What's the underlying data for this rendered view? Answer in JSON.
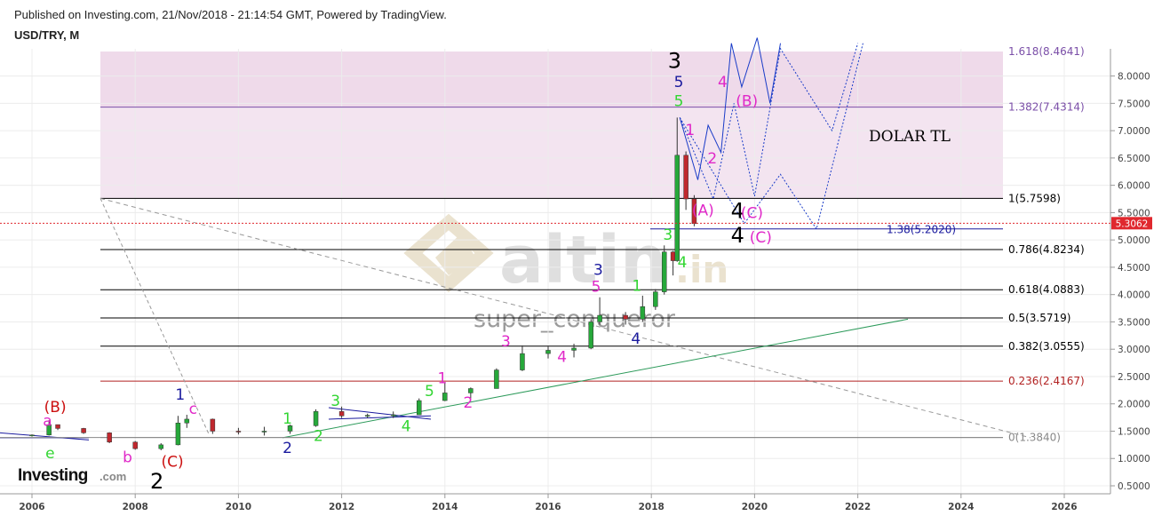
{
  "header": {
    "published": "Published on Investing.com, 21/Nov/2018 - 21:14:54 GMT, Powered by TradingView.",
    "symbol": "USD/TRY, M"
  },
  "watermark": {
    "brand": "altin",
    "suffix": ".in",
    "author": "super_conqueror"
  },
  "logo": {
    "main": "Investing",
    "suffix": ".com"
  },
  "annotation": {
    "text": "DOLAR TL"
  },
  "colors": {
    "up": "#26a83a",
    "down": "#c0282e",
    "fib_zone": "#f3e4f0",
    "wave_black": "#000000",
    "wave_blue": "#1a1a9e",
    "wave_green": "#33d633",
    "wave_magenta": "#e028c8",
    "wave_red": "#cc1111",
    "current_price": "#e0282e"
  },
  "chart_data": {
    "type": "candlestick",
    "timeframe": "monthly",
    "x_ticks": [
      "2006",
      "2008",
      "2010",
      "2012",
      "2014",
      "2016",
      "2018",
      "2020",
      "2022",
      "2024",
      "2026"
    ],
    "y_ticks": [
      "0.5000",
      "1.0000",
      "1.5000",
      "2.0000",
      "2.5000",
      "3.0000",
      "3.5000",
      "4.0000",
      "4.5000",
      "5.0000",
      "5.5000",
      "6.0000",
      "6.5000",
      "7.0000",
      "7.5000",
      "8.0000"
    ],
    "y_range": [
      0.35,
      8.55
    ],
    "current_price": "5.3062",
    "fib_levels": [
      {
        "label": "1.618(8.4641)",
        "value": 8.4641,
        "color": "#7b4fa8"
      },
      {
        "label": "1.382(7.4314)",
        "value": 7.4314,
        "color": "#7b4fa8"
      },
      {
        "label": "1(5.7598)",
        "value": 5.7598,
        "color": "#000000"
      },
      {
        "label": "0.786(4.8234)",
        "value": 4.8234,
        "color": "#000000"
      },
      {
        "label": "0.618(4.0883)",
        "value": 4.0883,
        "color": "#000000"
      },
      {
        "label": "0.5(3.5719)",
        "value": 3.5719,
        "color": "#000000"
      },
      {
        "label": "0.382(3.0555)",
        "value": 3.0555,
        "color": "#000000"
      },
      {
        "label": "0.236(2.4167)",
        "value": 2.4167,
        "color": "#b22222"
      },
      {
        "label": "0(1.3840)",
        "value": 1.384,
        "color": "#888888"
      }
    ],
    "extension_label": {
      "label": "1.38(5.2020)",
      "value": 5.202
    },
    "candles": [
      [
        2006.0,
        1.42,
        1.44,
        1.4,
        1.43
      ],
      [
        2006.33,
        1.43,
        1.7,
        1.42,
        1.62
      ],
      [
        2006.5,
        1.62,
        1.6,
        1.52,
        1.55
      ],
      [
        2007.0,
        1.55,
        1.56,
        1.45,
        1.47
      ],
      [
        2007.5,
        1.47,
        1.48,
        1.28,
        1.3
      ],
      [
        2008.0,
        1.3,
        1.32,
        1.16,
        1.18
      ],
      [
        2008.5,
        1.18,
        1.28,
        1.15,
        1.25
      ],
      [
        2008.83,
        1.25,
        1.78,
        1.24,
        1.65
      ],
      [
        2009.0,
        1.65,
        1.8,
        1.56,
        1.72
      ],
      [
        2009.5,
        1.72,
        1.73,
        1.45,
        1.5
      ],
      [
        2010.0,
        1.5,
        1.56,
        1.44,
        1.49
      ],
      [
        2010.5,
        1.49,
        1.58,
        1.42,
        1.5
      ],
      [
        2011.0,
        1.5,
        1.62,
        1.45,
        1.6
      ],
      [
        2011.5,
        1.6,
        1.9,
        1.58,
        1.86
      ],
      [
        2012.0,
        1.86,
        1.95,
        1.74,
        1.78
      ],
      [
        2012.5,
        1.78,
        1.82,
        1.74,
        1.79
      ],
      [
        2013.0,
        1.79,
        1.86,
        1.74,
        1.8
      ],
      [
        2013.5,
        1.8,
        2.1,
        1.8,
        2.06
      ],
      [
        2014.0,
        2.06,
        2.39,
        2.05,
        2.2
      ],
      [
        2014.5,
        2.2,
        2.3,
        2.1,
        2.28
      ],
      [
        2015.0,
        2.28,
        2.65,
        2.28,
        2.62
      ],
      [
        2015.5,
        2.62,
        3.07,
        2.6,
        2.92
      ],
      [
        2016.0,
        2.92,
        3.05,
        2.83,
        2.98
      ],
      [
        2016.5,
        2.98,
        3.1,
        2.85,
        3.02
      ],
      [
        2016.83,
        3.02,
        3.55,
        3.0,
        3.5
      ],
      [
        2017.0,
        3.5,
        3.95,
        3.45,
        3.62
      ],
      [
        2017.5,
        3.62,
        3.68,
        3.45,
        3.55
      ],
      [
        2017.83,
        3.55,
        3.98,
        3.5,
        3.78
      ],
      [
        2018.08,
        3.78,
        4.1,
        3.72,
        4.05
      ],
      [
        2018.25,
        4.05,
        4.9,
        4.0,
        4.78
      ],
      [
        2018.42,
        4.78,
        4.8,
        4.35,
        4.62
      ],
      [
        2018.5,
        4.62,
        7.24,
        4.6,
        6.55
      ],
      [
        2018.67,
        6.55,
        6.62,
        5.55,
        5.75
      ],
      [
        2018.83,
        5.75,
        5.82,
        5.25,
        5.3
      ]
    ],
    "wave_labels": [
      {
        "text": "(B)",
        "x": 2006.45,
        "y": 1.85,
        "color": "#cc1111"
      },
      {
        "text": "a",
        "x": 2006.3,
        "y": 1.6,
        "color": "#e028c8"
      },
      {
        "text": "e",
        "x": 2006.35,
        "y": 1.0,
        "color": "#33d633"
      },
      {
        "text": "b",
        "x": 2007.85,
        "y": 0.93,
        "color": "#e028c8"
      },
      {
        "text": "(C)",
        "x": 2008.72,
        "y": 0.85,
        "color": "#cc1111"
      },
      {
        "text": "2",
        "x": 2008.42,
        "y": 0.45,
        "color": "#000000"
      },
      {
        "text": "1",
        "x": 2008.87,
        "y": 2.08,
        "color": "#1a1a9e"
      },
      {
        "text": "c",
        "x": 2009.12,
        "y": 1.82,
        "color": "#e028c8"
      },
      {
        "text": "1",
        "x": 2010.95,
        "y": 1.64,
        "color": "#33d633"
      },
      {
        "text": "2",
        "x": 2010.95,
        "y": 1.1,
        "color": "#1a1a9e"
      },
      {
        "text": "2",
        "x": 2011.55,
        "y": 1.32,
        "color": "#33d633"
      },
      {
        "text": "3",
        "x": 2011.88,
        "y": 1.96,
        "color": "#33d633"
      },
      {
        "text": "4",
        "x": 2013.25,
        "y": 1.5,
        "color": "#33d633"
      },
      {
        "text": "5",
        "x": 2013.7,
        "y": 2.14,
        "color": "#33d633"
      },
      {
        "text": "1",
        "x": 2013.95,
        "y": 2.38,
        "color": "#e028c8"
      },
      {
        "text": "2",
        "x": 2014.45,
        "y": 1.93,
        "color": "#e028c8"
      },
      {
        "text": "3",
        "x": 2015.18,
        "y": 3.05,
        "color": "#e028c8"
      },
      {
        "text": "4",
        "x": 2016.27,
        "y": 2.77,
        "color": "#e028c8"
      },
      {
        "text": "3",
        "x": 2016.97,
        "y": 4.36,
        "color": "#1a1a9e"
      },
      {
        "text": "5",
        "x": 2016.93,
        "y": 4.05,
        "color": "#e028c8"
      },
      {
        "text": "4",
        "x": 2017.7,
        "y": 3.1,
        "color": "#1a1a9e"
      },
      {
        "text": "1",
        "x": 2017.72,
        "y": 4.07,
        "color": "#33d633"
      },
      {
        "text": "3",
        "x": 2018.32,
        "y": 5.0,
        "color": "#33d633"
      },
      {
        "text": "4",
        "x": 2018.6,
        "y": 4.5,
        "color": "#33d633"
      },
      {
        "text": "5",
        "x": 2018.53,
        "y": 7.45,
        "color": "#33d633"
      },
      {
        "text": "5",
        "x": 2018.53,
        "y": 7.8,
        "color": "#1a1a9e"
      },
      {
        "text": "3",
        "x": 2018.45,
        "y": 8.15,
        "color": "#000000"
      },
      {
        "text": "1",
        "x": 2018.75,
        "y": 6.92,
        "color": "#e028c8"
      },
      {
        "text": "2",
        "x": 2019.18,
        "y": 6.4,
        "color": "#e028c8"
      },
      {
        "text": "4",
        "x": 2019.38,
        "y": 7.8,
        "color": "#e028c8"
      },
      {
        "text": "(B)",
        "x": 2019.85,
        "y": 7.45,
        "color": "#e028c8"
      },
      {
        "text": "(A)",
        "x": 2019.0,
        "y": 5.45,
        "color": "#e028c8"
      },
      {
        "text": "4",
        "x": 2019.67,
        "y": 5.4,
        "color": "#000000"
      },
      {
        "text": "(C)",
        "x": 2019.95,
        "y": 5.4,
        "color": "#e028c8"
      },
      {
        "text": "4",
        "x": 2019.67,
        "y": 4.95,
        "color": "#000000"
      },
      {
        "text": "(C)",
        "x": 2020.12,
        "y": 4.95,
        "color": "#e028c8"
      }
    ]
  }
}
